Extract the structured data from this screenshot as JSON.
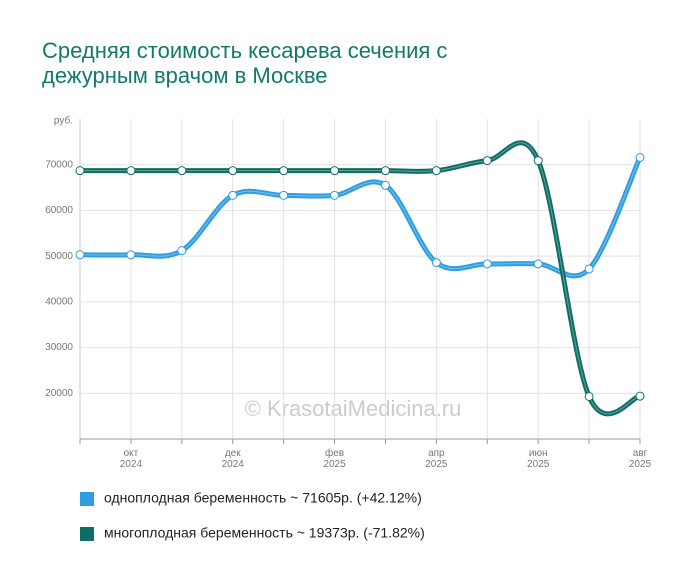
{
  "chart_data": {
    "type": "line",
    "title": "Средняя стоимость кесарева сечения с",
    "title_line2": "дежурным врачом в Москве",
    "y_label": "руб.",
    "watermark": "© KrasotaiMedicina.ru",
    "categories": [
      null,
      "окт\n2024",
      null,
      "дек\n2024",
      null,
      "фев\n2025",
      null,
      "апр\n2025",
      null,
      "июн\n2025",
      null,
      "авг\n2025"
    ],
    "series": [
      {
        "name": "одноплодная беременность ~ 71605р. (+42.12%)",
        "color": "#2d9ee0",
        "values": [
          50300,
          50300,
          51200,
          63300,
          63300,
          63300,
          65500,
          48600,
          48300,
          48300,
          47200,
          71605
        ]
      },
      {
        "name": "многоплодная беременность ~ 19373р. (-71.82%)",
        "color": "#0e6e66",
        "values": [
          68700,
          68700,
          68700,
          68700,
          68700,
          68700,
          68700,
          68700,
          70900,
          70900,
          19300,
          19373
        ]
      }
    ],
    "ylim": [
      10000,
      80000
    ],
    "yticks": [
      20000,
      30000,
      40000,
      50000,
      60000,
      70000
    ],
    "grid": true
  }
}
